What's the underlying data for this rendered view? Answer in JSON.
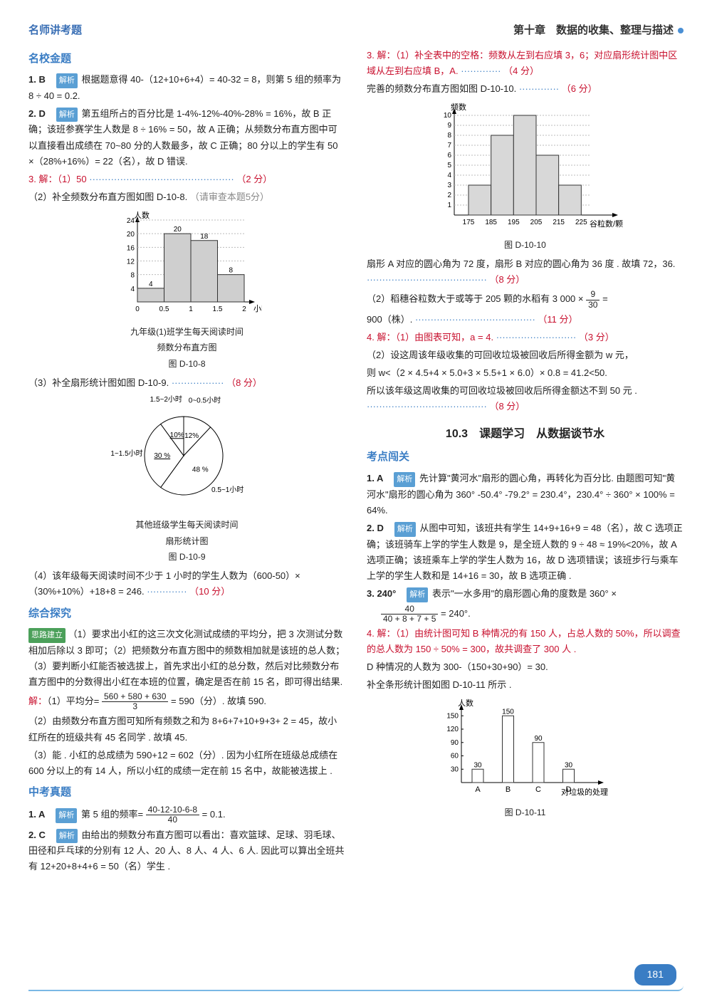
{
  "header": {
    "left": "名师讲考题",
    "right": "第十章　数据的收集、整理与描述"
  },
  "left": {
    "sec1": "名校金题",
    "q1": "1. B",
    "q1tag": "解析",
    "q1t": "根据题意得 40-（12+10+6+4）= 40-32 = 8，则第 5 组的频率为 8 ÷ 40 = 0.2.",
    "q2": "2. D",
    "q2tag": "解析",
    "q2t": "第五组所占的百分比是 1-4%-12%-40%-28% = 16%，故 B 正确；该班参赛学生人数是 8 ÷ 16% = 50，故 A 正确；从频数分布直方图中可以直接看出成绩在 70~80 分的人数最多，故 C 正确；80 分以上的学生有 50 ×（28%+16%）= 22（名），故 D 错误.",
    "q3a": "3. 解：（1）50",
    "q3a_pts": "（2 分）",
    "q3b": "（2）补全频数分布直方图如图 D-10-8.",
    "q3b_pts": "（请审查本题5分）",
    "chart1": {
      "title": "人数",
      "categories": [
        "0",
        "0.5",
        "1",
        "1.5",
        "2"
      ],
      "xlabel": "小时",
      "values": [
        4,
        20,
        18,
        8
      ],
      "bar_color": "#cfcfcf",
      "ylim": [
        0,
        24
      ],
      "yticks": [
        4,
        8,
        12,
        16,
        20,
        24
      ],
      "caption1": "九年级(1)班学生每天阅读时间",
      "caption2": "频数分布直方图",
      "caption3": "图 D-10-8"
    },
    "q3c": "（3）补全扇形统计图如图 D-10-9.",
    "q3c_pts": "（8 分）",
    "pie": {
      "slices": [
        {
          "label": "0~0.5小时",
          "pct": "12%"
        },
        {
          "label": "0.5~1小时",
          "pct": "48 %"
        },
        {
          "label": "1~1.5小时",
          "pct": "30 %"
        },
        {
          "label": "1.5~2小时",
          "pct": "10%"
        }
      ],
      "caption1": "其他班级学生每天阅读时间",
      "caption2": "扇形统计图",
      "caption3": "图 D-10-9"
    },
    "q3d": "（4）该年级每天阅读时间不少于 1 小时的学生人数为（600-50）×（30%+10%）+18+8 = 246.",
    "q3d_pts": "（10 分）",
    "sec2": "综合探究",
    "sl": "思路建立",
    "sl_t": "（1）要求出小红的这三次文化测试成绩的平均分，把 3 次测试分数相加后除以 3 即可；（2）把频数分布直方图中的频数相加就是该班的总人数；（3）要判断小红能否被选拔上，首先求出小红的总分数，然后对比频数分布直方图中的分数得出小红在本班的位置，确定是否在前 15 名，即可得出结果.",
    "sol_h": "解：",
    "sol1a": "（1）平均分=",
    "sol1_num": "560 + 580 + 630",
    "sol1_den": "3",
    "sol1b": "= 590（分）. 故填 590.",
    "sol2": "（2）由频数分布直方图可知所有频数之和为 8+6+7+10+9+3+ 2 = 45，故小红所在的班级共有 45 名同学 . 故填 45.",
    "sol3": "（3）能 . 小红的总成绩为 590+12 = 602（分）. 因为小红所在班级总成绩在 600 分以上的有 14 人，所以小红的成绩一定在前 15 名中，故能被选拔上 .",
    "sec3": "中考真题",
    "zk1": "1. A",
    "zk1tag": "解析",
    "zk1a": "第 5 组的频率=",
    "zk1_num": "40-12-10-6-8",
    "zk1_den": "40",
    "zk1b": "= 0.1.",
    "zk2": "2. C",
    "zk2tag": "解析",
    "zk2t": "由给出的频数分布直方图可以看出：喜欢篮球、足球、羽毛球、田径和乒乓球的分别有 12 人、20 人、8 人、4 人、6 人. 因此可以算出全班共有 12+20+8+4+6 = 50（名）学生 ."
  },
  "right": {
    "r3a": "3. 解：（1）补全表中的空格：频数从左到右应填 3，6；对应扇形统计图中区域从左到右应填 B，A.",
    "r3a_pts": "（4 分）",
    "r3b": "完善的频数分布直方图如图 D-10-10.",
    "r3b_pts": "（6 分）",
    "hist": {
      "ylabel": "频数",
      "xticks": [
        "175",
        "185",
        "195",
        "205",
        "215",
        "225"
      ],
      "xlabel": "谷粒数/颗",
      "values": [
        3,
        8,
        10,
        6,
        3
      ],
      "ylim": [
        0,
        10
      ],
      "yticks": [
        1,
        2,
        3,
        4,
        5,
        6,
        7,
        8,
        9,
        10
      ],
      "bar_color": "#d8d8d8",
      "caption": "图 D-10-10"
    },
    "r3c": "扇形 A 对应的圆心角为 72 度，扇形 B 对应的圆心角为 36 度 . 故填 72，36.",
    "r3c_pts": "（8 分）",
    "r3d_a": "（2）稻穗谷粒数大于或等于 205 颗的水稻有 3 000 ×",
    "r3d_num": "9",
    "r3d_den": "30",
    "r3d_b": "=",
    "r3e": "900（株）.",
    "r3e_pts": "（11 分）",
    "r4a": "4. 解：（1）由图表可知，a = 4.",
    "r4a_pts": "（3 分）",
    "r4b": "（2）设这周该年级收集的可回收垃圾被回收后所得金额为 w 元，",
    "r4c": "则 w<（2 × 4.5+4 × 5.0+3 × 5.5+1 × 6.0）× 0.8 = 41.2<50.",
    "r4d": "所以该年级这周收集的可回收垃圾被回收后所得金额达不到 50 元 .",
    "r4d_pts": "（8 分）",
    "title103": "10.3　课题学习　从数据谈节水",
    "kw": "考点闯关",
    "k1": "1. A",
    "k1tag": "解析",
    "k1t": "先计算\"黄河水\"扇形的圆心角，再转化为百分比. 由题图可知\"黄河水\"扇形的圆心角为 360° -50.4° -79.2° = 230.4°，230.4° ÷ 360° × 100% = 64%.",
    "k2": "2. D",
    "k2tag": "解析",
    "k2t": "从图中可知，该班共有学生 14+9+16+9 = 48（名），故 C 选项正确；该班骑车上学的学生人数是 9，是全班人数的 9 ÷ 48 ≈ 19%<20%，故 A 选项正确；该班乘车上学的学生人数为 16，故 D 选项错误；该班步行与乘车上学的学生人数和是 14+16 = 30，故 B 选项正确 .",
    "k3a": "3. 240°",
    "k3tag": "解析",
    "k3b": "表示\"一水多用\"的扇形圆心角的度数是 360° ×",
    "k3_num": "40",
    "k3_den": "40 + 8 + 7 + 5",
    "k3c": "= 240°.",
    "k4a": "4. 解：（1）由统计图可知 B 种情况的有 150 人，占总人数的 50%，所以调查的总人数为 150 ÷ 50% = 300，故共调查了 300 人 .",
    "k4b": "D 种情况的人数为 300-（150+30+90）= 30.",
    "k4c": "补全条形统计图如图 D-10-11 所示 .",
    "bar2": {
      "ylabel": "人数",
      "categories": [
        "A",
        "B",
        "C",
        "D"
      ],
      "xlabel": "对垃圾的处理",
      "values": [
        30,
        150,
        90,
        30
      ],
      "yticks": [
        30,
        60,
        90,
        120,
        150
      ],
      "caption": "图 D-10-11"
    }
  },
  "page": "181"
}
